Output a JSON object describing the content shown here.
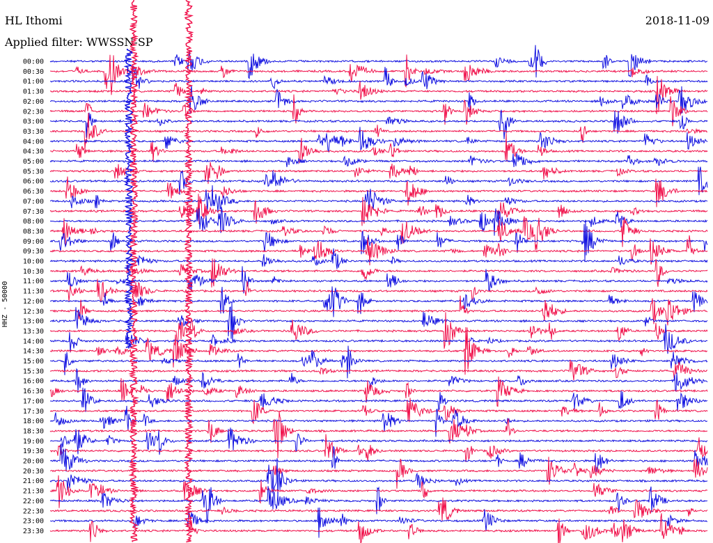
{
  "header": {
    "station": "HL Ithomi",
    "date": "2018-11-09",
    "filter": "Applied filter: WWSSN-SP"
  },
  "chart_data": {
    "type": "line",
    "title": "HL Ithomi",
    "ylabel": "HHZ - 50000",
    "row_labels": [
      "00:00",
      "00:30",
      "01:00",
      "01:30",
      "02:00",
      "02:30",
      "03:00",
      "03:30",
      "04:00",
      "04:30",
      "05:00",
      "05:30",
      "06:00",
      "06:30",
      "07:00",
      "07:30",
      "08:00",
      "08:30",
      "09:00",
      "09:30",
      "10:00",
      "10:30",
      "11:00",
      "11:30",
      "12:00",
      "12:30",
      "13:00",
      "13:30",
      "14:00",
      "14:30",
      "15:00",
      "15:30",
      "16:00",
      "16:30",
      "17:00",
      "17:30",
      "18:00",
      "18:30",
      "19:00",
      "19:30",
      "20:00",
      "20:30",
      "21:00",
      "21:30",
      "22:00",
      "22:30",
      "23:00",
      "23:30"
    ],
    "series_colors": [
      "#1010e0",
      "#f0104a"
    ],
    "grid": false,
    "x_range_minutes": [
      0,
      30
    ]
  }
}
